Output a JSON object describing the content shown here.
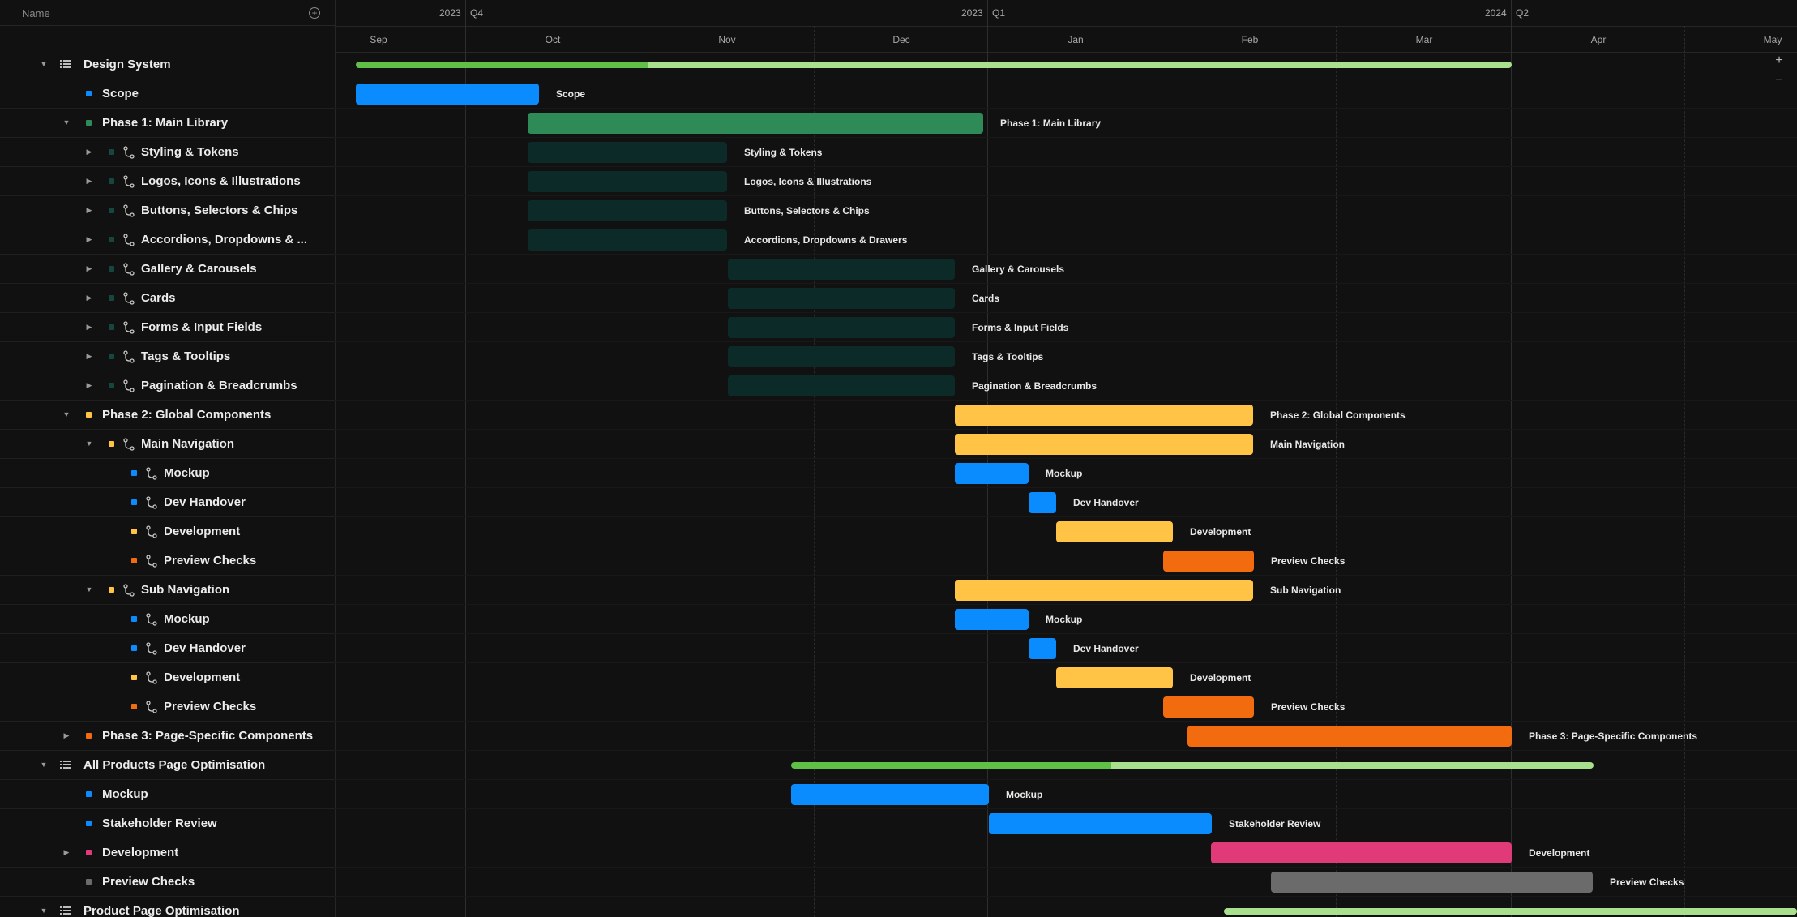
{
  "header": {
    "name_label": "Name"
  },
  "timeline": {
    "quarters": [
      {
        "year": "2023",
        "quarter": "Q4"
      },
      {
        "year": "2023",
        "quarter": "Q1"
      },
      {
        "year": "2024",
        "quarter": "Q2"
      }
    ],
    "months": [
      "Sep",
      "Oct",
      "Nov",
      "Dec",
      "Jan",
      "Feb",
      "Mar",
      "Apr",
      "May"
    ],
    "zoom_in": "+",
    "zoom_out": "−"
  },
  "colors": {
    "blue": "#0a8cff",
    "green": "#2e8b57",
    "dark_teal": "#0c2a28",
    "yellow": "#ffc445",
    "orange": "#f26b0f",
    "pink": "#e03a79",
    "gray": "#6b6b6b",
    "summary_done": "#5fbf46",
    "summary_rest": "#a8e08e"
  },
  "rows": [
    {
      "label": "Design System",
      "level": 0,
      "chevron": "down",
      "icon": "list-icon",
      "bar_label": ""
    },
    {
      "label": "Scope",
      "level": 1,
      "chevron": "",
      "icon": "square",
      "color": "blue",
      "dep": false,
      "bar_label": "Scope"
    },
    {
      "label": "Phase 1: Main Library",
      "level": 1,
      "chevron": "down",
      "icon": "square",
      "color": "green",
      "dep": false,
      "bar_label": "Phase 1: Main Library"
    },
    {
      "label": "Styling & Tokens",
      "level": 2,
      "chevron": "right",
      "icon": "square",
      "color": "dark_teal",
      "dep": true,
      "bar_label": "Styling & Tokens"
    },
    {
      "label": "Logos, Icons & Illustrations",
      "level": 2,
      "chevron": "right",
      "icon": "square",
      "color": "dark_teal",
      "dep": true,
      "bar_label": "Logos, Icons & Illustrations"
    },
    {
      "label": "Buttons, Selectors & Chips",
      "level": 2,
      "chevron": "right",
      "icon": "square",
      "color": "dark_teal",
      "dep": true,
      "bar_label": "Buttons, Selectors & Chips"
    },
    {
      "label": "Accordions, Dropdowns & ...",
      "level": 2,
      "chevron": "right",
      "icon": "square",
      "color": "dark_teal",
      "dep": true,
      "bar_label": "Accordions, Dropdowns & Drawers"
    },
    {
      "label": "Gallery & Carousels",
      "level": 2,
      "chevron": "right",
      "icon": "square",
      "color": "dark_teal",
      "dep": true,
      "bar_label": "Gallery & Carousels"
    },
    {
      "label": "Cards",
      "level": 2,
      "chevron": "right",
      "icon": "square",
      "color": "dark_teal",
      "dep": true,
      "bar_label": "Cards"
    },
    {
      "label": "Forms & Input Fields",
      "level": 2,
      "chevron": "right",
      "icon": "square",
      "color": "dark_teal",
      "dep": true,
      "bar_label": "Forms & Input Fields"
    },
    {
      "label": "Tags & Tooltips",
      "level": 2,
      "chevron": "right",
      "icon": "square",
      "color": "dark_teal",
      "dep": true,
      "bar_label": "Tags & Tooltips"
    },
    {
      "label": "Pagination & Breadcrumbs",
      "level": 2,
      "chevron": "right",
      "icon": "square",
      "color": "dark_teal",
      "dep": true,
      "bar_label": "Pagination & Breadcrumbs"
    },
    {
      "label": "Phase 2: Global Components",
      "level": 1,
      "chevron": "down",
      "icon": "square",
      "color": "yellow",
      "dep": false,
      "bar_label": "Phase 2: Global Components"
    },
    {
      "label": "Main Navigation",
      "level": 2,
      "chevron": "down",
      "icon": "square",
      "color": "yellow",
      "dep": true,
      "bar_label": "Main Navigation"
    },
    {
      "label": "Mockup",
      "level": 3,
      "chevron": "",
      "icon": "square",
      "color": "blue",
      "dep": true,
      "bar_label": "Mockup"
    },
    {
      "label": "Dev Handover",
      "level": 3,
      "chevron": "",
      "icon": "square",
      "color": "blue",
      "dep": true,
      "bar_label": "Dev Handover"
    },
    {
      "label": "Development",
      "level": 3,
      "chevron": "",
      "icon": "square",
      "color": "yellow",
      "dep": true,
      "bar_label": "Development"
    },
    {
      "label": "Preview Checks",
      "level": 3,
      "chevron": "",
      "icon": "square",
      "color": "orange",
      "dep": true,
      "bar_label": "Preview Checks"
    },
    {
      "label": "Sub Navigation",
      "level": 2,
      "chevron": "down",
      "icon": "square",
      "color": "yellow",
      "dep": true,
      "bar_label": "Sub Navigation"
    },
    {
      "label": "Mockup",
      "level": 3,
      "chevron": "",
      "icon": "square",
      "color": "blue",
      "dep": true,
      "bar_label": "Mockup"
    },
    {
      "label": "Dev Handover",
      "level": 3,
      "chevron": "",
      "icon": "square",
      "color": "blue",
      "dep": true,
      "bar_label": "Dev Handover"
    },
    {
      "label": "Development",
      "level": 3,
      "chevron": "",
      "icon": "square",
      "color": "yellow",
      "dep": true,
      "bar_label": "Development"
    },
    {
      "label": "Preview Checks",
      "level": 3,
      "chevron": "",
      "icon": "square",
      "color": "orange",
      "dep": true,
      "bar_label": "Preview Checks"
    },
    {
      "label": "Phase 3: Page-Specific Components",
      "level": 1,
      "chevron": "right",
      "icon": "square",
      "color": "orange",
      "dep": false,
      "bar_label": "Phase 3: Page-Specific Components"
    },
    {
      "label": "All Products Page Optimisation",
      "level": 0,
      "chevron": "down",
      "icon": "list-icon",
      "bar_label": ""
    },
    {
      "label": "Mockup",
      "level": 1,
      "chevron": "",
      "icon": "square",
      "color": "blue",
      "dep": false,
      "bar_label": "Mockup"
    },
    {
      "label": "Stakeholder Review",
      "level": 1,
      "chevron": "",
      "icon": "square",
      "color": "blue",
      "dep": false,
      "bar_label": "Stakeholder Review"
    },
    {
      "label": "Development",
      "level": 1,
      "chevron": "right",
      "icon": "square",
      "color": "pink",
      "dep": false,
      "bar_label": "Development"
    },
    {
      "label": "Preview Checks",
      "level": 1,
      "chevron": "",
      "icon": "square",
      "color": "gray",
      "dep": false,
      "bar_label": "Preview Checks"
    },
    {
      "label": "Product Page Optimisation",
      "level": 0,
      "chevron": "down",
      "icon": "list-icon",
      "bar_label": ""
    }
  ]
}
